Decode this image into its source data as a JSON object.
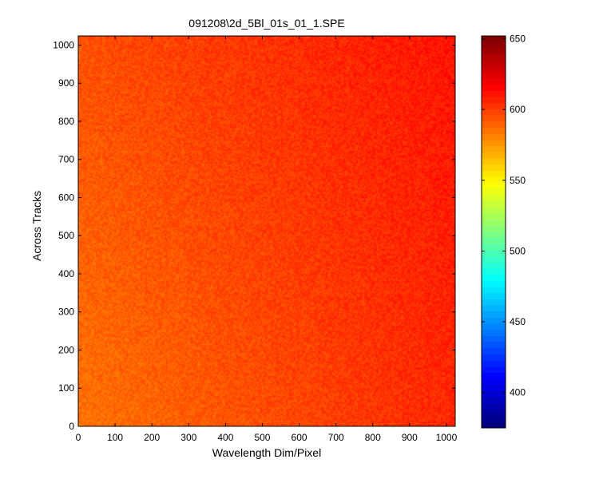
{
  "figure": {
    "background": "#ffffff"
  },
  "chart_data": {
    "type": "heatmap",
    "title": "091208\\2d_5Bl_01s_01_1.SPE",
    "xlabel": "Wavelength Dim/Pixel",
    "ylabel": "Across Tracks",
    "xlim": [
      0,
      1024
    ],
    "ylim": [
      0,
      1024
    ],
    "xticks": [
      0,
      100,
      200,
      300,
      400,
      500,
      600,
      700,
      800,
      900,
      1000
    ],
    "yticks": [
      0,
      100,
      200,
      300,
      400,
      500,
      600,
      700,
      800,
      900,
      1000
    ],
    "colormap": "jet",
    "clim": [
      375,
      652
    ],
    "colorbar_ticks": [
      400,
      450,
      500,
      550,
      600,
      650
    ],
    "grid": false,
    "description_values": {
      "bottom_left_level": 586,
      "bottom_right_level": 607,
      "top_left_level": 596,
      "top_right_level": 612
    }
  }
}
